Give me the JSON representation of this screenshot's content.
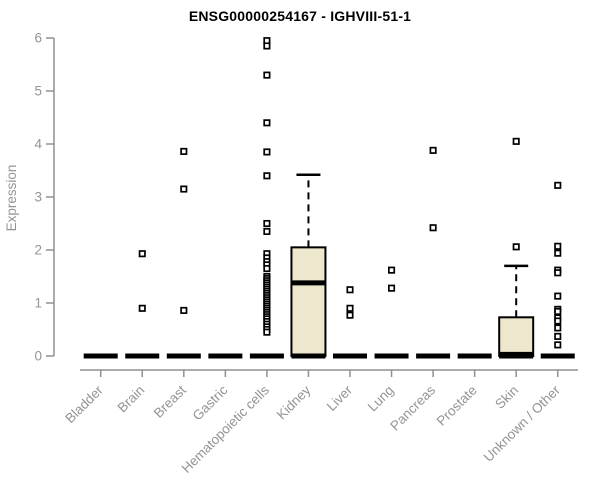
{
  "chart_data": {
    "type": "boxplot",
    "title": "ENSG00000254167 - IGHVIII-51-1",
    "ylabel": "Expression",
    "xlabel": "",
    "ylim": [
      0,
      6
    ],
    "yticks": [
      0,
      1,
      2,
      3,
      4,
      5,
      6
    ],
    "grid": false,
    "legend": "none",
    "categories": [
      "Bladder",
      "Brain",
      "Breast",
      "Gastric",
      "Hematopoietic cells",
      "Kidney",
      "Liver",
      "Lung",
      "Pancreas",
      "Prostate",
      "Skin",
      "Unknown / Other"
    ],
    "boxes": [
      {
        "category": "Bladder",
        "q1": 0,
        "median": 0,
        "q3": 0,
        "whisker_low": 0,
        "whisker_high": 0,
        "outliers": []
      },
      {
        "category": "Brain",
        "q1": 0,
        "median": 0,
        "q3": 0,
        "whisker_low": 0,
        "whisker_high": 0,
        "outliers": [
          1.93,
          0.9
        ]
      },
      {
        "category": "Breast",
        "q1": 0,
        "median": 0,
        "q3": 0,
        "whisker_low": 0,
        "whisker_high": 0,
        "outliers": [
          3.86,
          3.15,
          0.86
        ]
      },
      {
        "category": "Gastric",
        "q1": 0,
        "median": 0,
        "q3": 0,
        "whisker_low": 0,
        "whisker_high": 0,
        "outliers": []
      },
      {
        "category": "Hematopoietic cells",
        "q1": 0,
        "median": 0,
        "q3": 0,
        "whisker_low": 0,
        "whisker_high": 0,
        "outliers": [
          5.95,
          5.85,
          5.3,
          4.4,
          3.85,
          3.4,
          2.5,
          2.35,
          1.93,
          1.85,
          1.78,
          1.72,
          1.65,
          1.5,
          1.46,
          1.42,
          1.38,
          1.34,
          1.3,
          1.26,
          1.22,
          1.18,
          1.14,
          1.1,
          1.06,
          1.02,
          0.98,
          0.94,
          0.9,
          0.86,
          0.82,
          0.78,
          0.74,
          0.7,
          0.65,
          0.6,
          0.55,
          0.5,
          0.45
        ]
      },
      {
        "category": "Kidney",
        "q1": 0,
        "median": 1.38,
        "q3": 2.05,
        "whisker_low": 0,
        "whisker_high": 3.42,
        "outliers": []
      },
      {
        "category": "Liver",
        "q1": 0,
        "median": 0,
        "q3": 0,
        "whisker_low": 0,
        "whisker_high": 0,
        "outliers": [
          1.25,
          0.9,
          0.77
        ]
      },
      {
        "category": "Lung",
        "q1": 0,
        "median": 0,
        "q3": 0,
        "whisker_low": 0,
        "whisker_high": 0,
        "outliers": [
          1.62,
          1.28
        ]
      },
      {
        "category": "Pancreas",
        "q1": 0,
        "median": 0,
        "q3": 0,
        "whisker_low": 0,
        "whisker_high": 0,
        "outliers": [
          3.88,
          2.42
        ]
      },
      {
        "category": "Prostate",
        "q1": 0,
        "median": 0,
        "q3": 0,
        "whisker_low": 0,
        "whisker_high": 0,
        "outliers": []
      },
      {
        "category": "Skin",
        "q1": 0,
        "median": 0.03,
        "q3": 0.73,
        "whisker_low": 0,
        "whisker_high": 1.7,
        "outliers": [
          4.05,
          2.06
        ]
      },
      {
        "category": "Unknown / Other",
        "q1": 0,
        "median": 0,
        "q3": 0,
        "whisker_low": 0,
        "whisker_high": 0,
        "outliers": [
          3.22,
          2.07,
          1.94,
          1.62,
          1.57,
          1.13,
          0.88,
          0.84,
          0.72,
          0.66,
          0.53,
          0.37,
          0.21
        ]
      }
    ],
    "colors": {
      "box_fill": "#EDE7CD",
      "box_stroke": "#000000",
      "median": "#000000",
      "whisker": "#000000",
      "outlier_stroke": "#000000",
      "outlier_fill": "#FFFFFF",
      "axis": "#909090",
      "tick_label": "#949494",
      "title": "#000000"
    },
    "marker": "open-square-icon"
  }
}
